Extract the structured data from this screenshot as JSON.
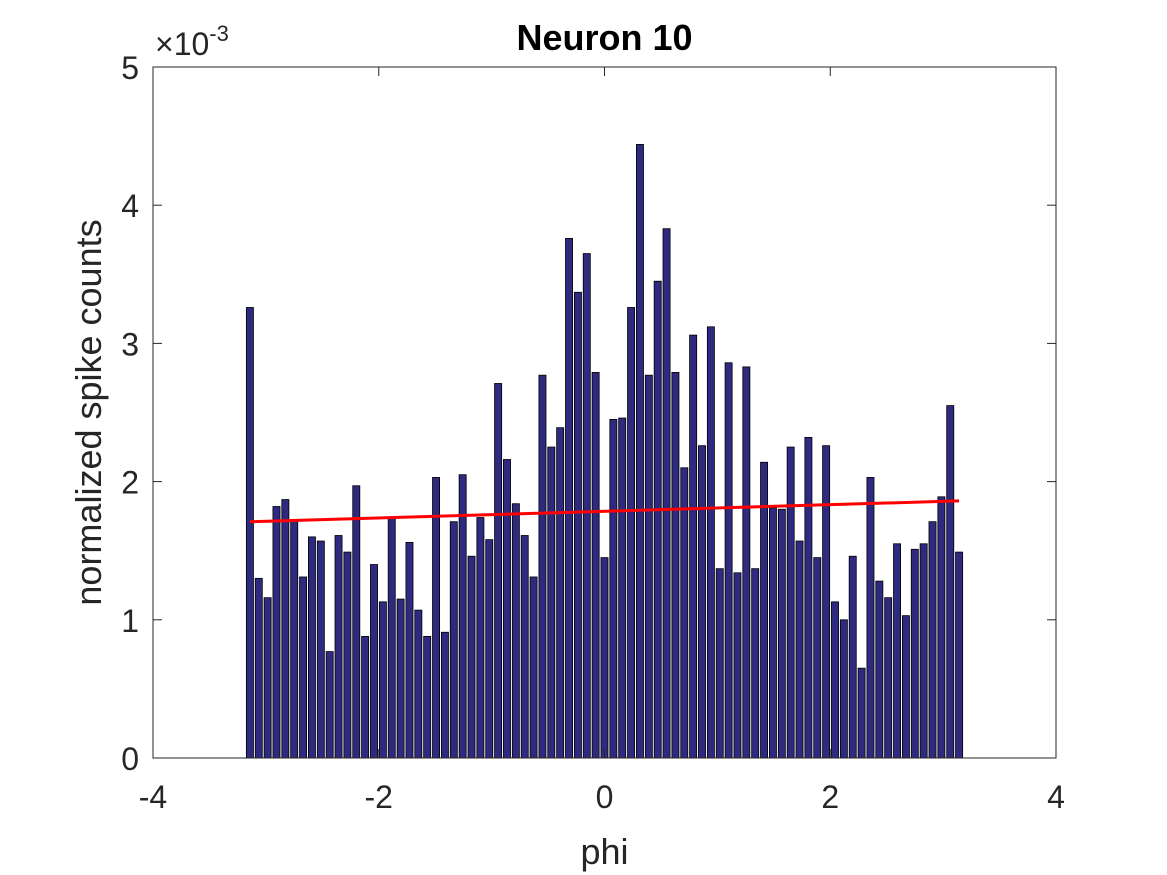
{
  "chart_data": {
    "type": "bar",
    "title": "Neuron 10",
    "xlabel": "phi",
    "ylabel": "normalized spike counts",
    "y_exponent_base": "×10",
    "y_exponent_power": "-3",
    "xlim": [
      -4,
      4
    ],
    "ylim": [
      0,
      5
    ],
    "x_ticks": [
      -4,
      -2,
      0,
      2,
      4
    ],
    "x_tick_labels": [
      "-4",
      "-2",
      "0",
      "2",
      "4"
    ],
    "y_ticks": [
      0,
      1,
      2,
      3,
      4,
      5
    ],
    "y_tick_labels": [
      "0",
      "1",
      "2",
      "3",
      "4",
      "5"
    ],
    "grid": false,
    "bar_color": "#2e2a80",
    "bar_edge_color": "#000000",
    "fit_line_color": "#ff0000",
    "x_start": -3.1416,
    "x_end": 3.1416,
    "values": [
      3.26,
      1.3,
      1.16,
      1.82,
      1.87,
      1.72,
      1.31,
      1.6,
      1.57,
      0.77,
      1.61,
      1.49,
      1.97,
      0.88,
      1.4,
      1.13,
      1.74,
      1.15,
      1.56,
      1.07,
      0.88,
      2.03,
      0.91,
      1.71,
      2.05,
      1.46,
      1.74,
      1.58,
      2.71,
      2.16,
      1.84,
      1.61,
      1.31,
      2.77,
      2.25,
      2.39,
      3.76,
      3.37,
      3.65,
      2.79,
      1.45,
      2.45,
      2.46,
      3.26,
      4.44,
      2.77,
      3.45,
      3.83,
      2.79,
      2.1,
      3.06,
      2.26,
      3.12,
      1.37,
      2.86,
      1.34,
      2.83,
      1.37,
      2.14,
      1.81,
      1.8,
      2.25,
      1.57,
      2.32,
      1.45,
      2.26,
      1.13,
      1.0,
      1.46,
      0.65,
      2.03,
      1.28,
      1.16,
      1.55,
      1.03,
      1.51,
      1.55,
      1.71,
      1.89,
      2.55,
      1.49
    ],
    "fit_line": {
      "x": [
        -3.1416,
        3.1416
      ],
      "y": [
        1.71,
        1.86
      ]
    }
  }
}
